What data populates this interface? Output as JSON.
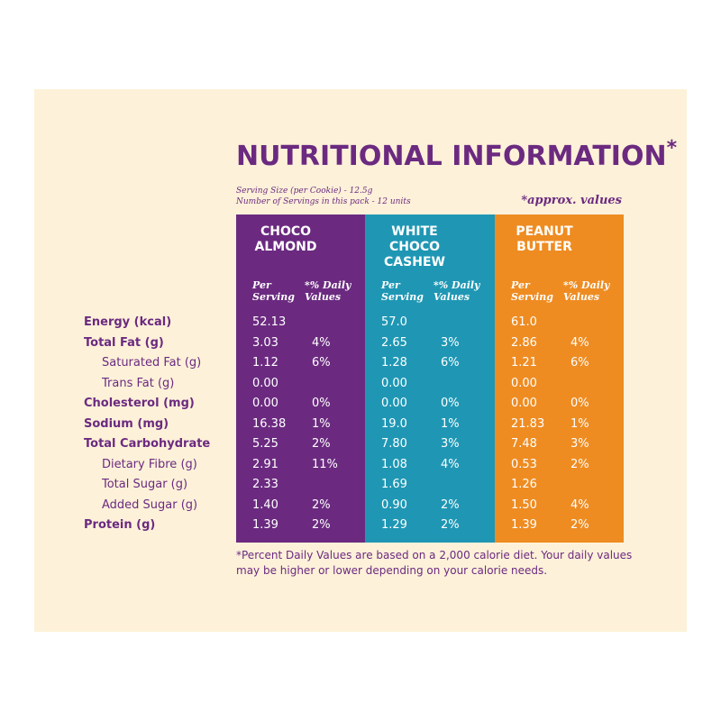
{
  "title": "NUTRITIONAL INFORMATION",
  "title_star": "*",
  "serving_size": "Serving Size (per Cookie) - 12.5g",
  "servings_per_pack": "Number of Servings in this pack - 12 units",
  "approx_note": "*approx. values",
  "colors": {
    "purple": "#6b2a80",
    "teal": "#1f97b4",
    "orange": "#ee8c22",
    "panel": "#fdf1d9"
  },
  "header_per": "Per\nServing",
  "header_dv": "*% Daily\nValues",
  "nutrients": [
    {
      "label": "Energy (kcal)",
      "bold": true
    },
    {
      "label": "Total Fat (g)",
      "bold": true
    },
    {
      "label": "Saturated Fat (g)",
      "bold": false
    },
    {
      "label": "Trans Fat (g)",
      "bold": false
    },
    {
      "label": "Cholesterol (mg)",
      "bold": true
    },
    {
      "label": "Sodium (mg)",
      "bold": true
    },
    {
      "label": "Total Carbohydrate",
      "bold": true
    },
    {
      "label": "Dietary Fibre (g)",
      "bold": false
    },
    {
      "label": "Total Sugar (g)",
      "bold": false
    },
    {
      "label": "Added Sugar (g)",
      "bold": false
    },
    {
      "label": "Protein (g)",
      "bold": true
    }
  ],
  "products": [
    {
      "name": "CHOCO\nALMOND",
      "color": "#6b2a80",
      "per_serving": [
        "52.13",
        "3.03",
        "1.12",
        "0.00",
        "0.00",
        "16.38",
        "5.25",
        "2.91",
        "2.33",
        "1.40",
        "1.39"
      ],
      "daily_values": [
        "",
        "4%",
        "6%",
        "",
        "0%",
        "1%",
        "2%",
        "11%",
        "",
        "2%",
        "2%"
      ]
    },
    {
      "name": "WHITE\nCHOCO\nCASHEW",
      "color": "#1f97b4",
      "per_serving": [
        "57.0",
        "2.65",
        "1.28",
        "0.00",
        "0.00",
        "19.0",
        "7.80",
        "1.08",
        "1.69",
        "0.90",
        "1.29"
      ],
      "daily_values": [
        "",
        "3%",
        "6%",
        "",
        "0%",
        "1%",
        "3%",
        "4%",
        "",
        "2%",
        "2%"
      ]
    },
    {
      "name": "PEANUT\nBUTTER",
      "color": "#ee8c22",
      "per_serving": [
        "61.0",
        "2.86",
        "1.21",
        "0.00",
        "0.00",
        "21.83",
        "7.48",
        "0.53",
        "1.26",
        "1.50",
        "1.39"
      ],
      "daily_values": [
        "",
        "4%",
        "6%",
        "",
        "0%",
        "1%",
        "3%",
        "2%",
        "",
        "4%",
        "2%"
      ]
    }
  ],
  "footnote": "*Percent Daily Values are based on a 2,000 calorie diet. Your daily values may be higher or lower depending on your calorie needs."
}
